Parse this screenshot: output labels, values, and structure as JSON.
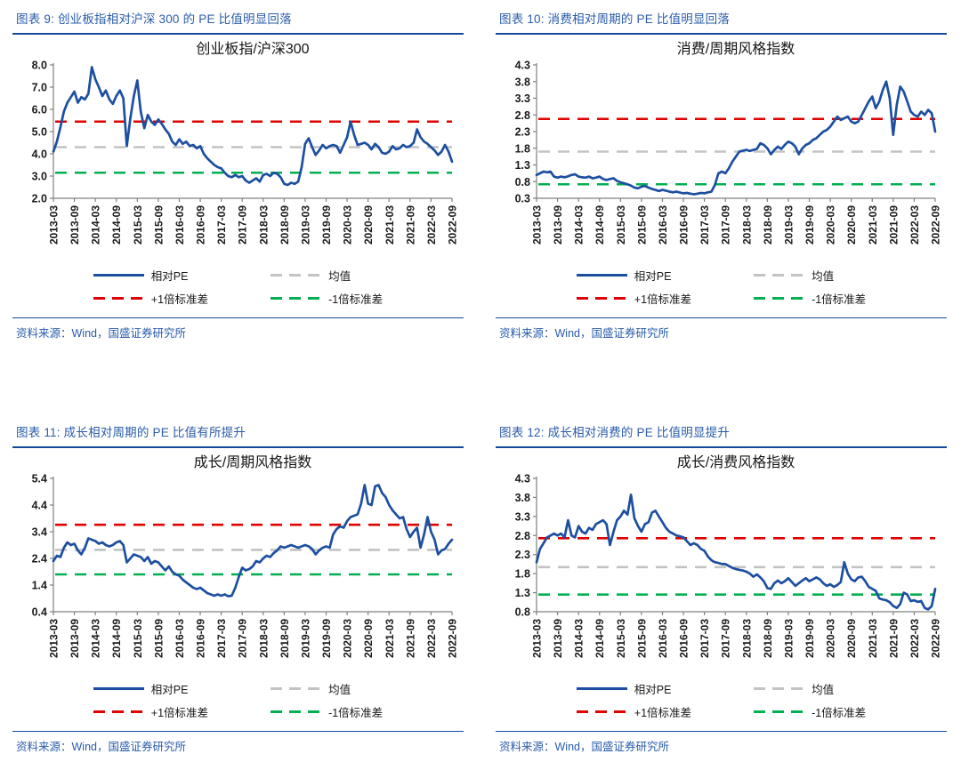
{
  "page": {
    "background": "#ffffff"
  },
  "colors": {
    "line": "#1d4fa1",
    "mean": "#c3c3c3",
    "plus1sd": "#e00000",
    "minus1sd": "#00b050",
    "header_text": "#2a5caa",
    "rule": "#17499b",
    "axis": "#808080"
  },
  "legend": {
    "series": "相对PE",
    "mean": "均值",
    "plus_sd": "+1倍标准差",
    "minus_sd": "-1倍标准差"
  },
  "source_text": "资料来源：Wind，国盛证券研究所",
  "panels": [
    {
      "header": "图表 9: 创业板指相对沪深 300 的 PE 比值明显回落"
    },
    {
      "header": "图表 10: 消费相对周期的 PE 比值明显回落"
    },
    {
      "header": "图表 11: 成长相对周期的 PE 比值有所提升"
    },
    {
      "header": "图表 12: 成长相对消费的 PE 比值明显提升"
    }
  ],
  "chart_data": [
    {
      "type": "line",
      "title": "创业板指/沪深300",
      "ylim": [
        2.0,
        8.0
      ],
      "ytick_labels": [
        "2.0",
        "3.0",
        "4.0",
        "5.0",
        "6.0",
        "7.0",
        "8.0"
      ],
      "yticks": [
        2.0,
        3.0,
        4.0,
        5.0,
        6.0,
        7.0,
        8.0
      ],
      "x_tick_labels": [
        "2013-03",
        "2013-09",
        "2014-03",
        "2014-09",
        "2015-03",
        "2015-09",
        "2016-03",
        "2016-09",
        "2017-03",
        "2017-09",
        "2018-03",
        "2018-09",
        "2019-03",
        "2019-09",
        "2020-03",
        "2020-09",
        "2021-03",
        "2021-09",
        "2022-03",
        "2022-09"
      ],
      "mean": 4.3,
      "plus1sd": 5.45,
      "minus1sd": 3.15,
      "series_monthly": [
        4.1,
        4.55,
        5.2,
        5.9,
        6.3,
        6.55,
        6.8,
        6.3,
        6.55,
        6.45,
        6.7,
        7.9,
        7.35,
        7.0,
        6.6,
        6.85,
        6.45,
        6.25,
        6.6,
        6.85,
        6.5,
        4.35,
        5.6,
        6.6,
        7.3,
        5.9,
        5.15,
        5.75,
        5.45,
        5.3,
        5.55,
        5.35,
        5.1,
        4.9,
        4.55,
        4.4,
        4.65,
        4.45,
        4.55,
        4.35,
        4.4,
        4.25,
        4.35,
        4.0,
        3.8,
        3.65,
        3.5,
        3.4,
        3.35,
        3.15,
        3.0,
        2.95,
        3.05,
        2.95,
        3.0,
        2.8,
        2.7,
        2.8,
        2.9,
        2.75,
        3.05,
        3.1,
        3.0,
        3.15,
        3.1,
        2.95,
        2.65,
        2.6,
        2.7,
        2.65,
        2.75,
        3.4,
        4.45,
        4.7,
        4.3,
        3.95,
        4.15,
        4.4,
        4.25,
        4.35,
        4.4,
        4.35,
        4.05,
        4.4,
        4.75,
        5.45,
        4.85,
        4.4,
        4.45,
        4.5,
        4.4,
        4.2,
        4.45,
        4.3,
        4.05,
        4.0,
        4.1,
        4.35,
        4.2,
        4.25,
        4.4,
        4.3,
        4.35,
        4.5,
        5.1,
        4.75,
        4.55,
        4.45,
        4.3,
        4.15,
        3.95,
        4.1,
        4.4,
        4.1,
        3.65
      ]
    },
    {
      "type": "line",
      "title": "消费/周期风格指数",
      "ylim": [
        0.3,
        4.3
      ],
      "ytick_labels": [
        "0.3",
        "0.8",
        "1.3",
        "1.8",
        "2.3",
        "2.8",
        "3.3",
        "3.8",
        "4.3"
      ],
      "yticks": [
        0.3,
        0.8,
        1.3,
        1.8,
        2.3,
        2.8,
        3.3,
        3.8,
        4.3
      ],
      "x_tick_labels": [
        "2013-03",
        "2013-09",
        "2014-03",
        "2014-09",
        "2015-03",
        "2015-09",
        "2016-03",
        "2016-09",
        "2017-03",
        "2017-09",
        "2018-03",
        "2018-09",
        "2019-03",
        "2019-09",
        "2020-03",
        "2020-09",
        "2021-03",
        "2021-09",
        "2022-03",
        "2022-09"
      ],
      "mean": 1.7,
      "plus1sd": 2.68,
      "minus1sd": 0.72,
      "series_monthly": [
        1.0,
        1.05,
        1.1,
        1.08,
        1.1,
        0.95,
        0.92,
        0.95,
        0.93,
        0.96,
        1.0,
        1.02,
        0.95,
        0.93,
        0.92,
        0.95,
        0.9,
        0.92,
        0.95,
        0.88,
        0.85,
        0.88,
        0.9,
        0.82,
        0.78,
        0.75,
        0.72,
        0.68,
        0.62,
        0.6,
        0.65,
        0.67,
        0.62,
        0.58,
        0.55,
        0.52,
        0.55,
        0.53,
        0.5,
        0.48,
        0.5,
        0.47,
        0.45,
        0.46,
        0.44,
        0.42,
        0.44,
        0.46,
        0.45,
        0.48,
        0.5,
        0.7,
        1.05,
        1.1,
        1.05,
        1.2,
        1.4,
        1.55,
        1.7,
        1.73,
        1.75,
        1.72,
        1.75,
        1.78,
        1.95,
        1.9,
        1.8,
        1.62,
        1.75,
        1.85,
        1.78,
        1.9,
        2.0,
        1.95,
        1.85,
        1.62,
        1.8,
        1.9,
        1.95,
        2.05,
        2.1,
        2.2,
        2.3,
        2.35,
        2.45,
        2.6,
        2.75,
        2.65,
        2.7,
        2.75,
        2.6,
        2.55,
        2.6,
        2.8,
        3.0,
        3.2,
        3.35,
        3.0,
        3.2,
        3.55,
        3.8,
        3.3,
        2.2,
        3.1,
        3.65,
        3.5,
        3.2,
        2.9,
        2.8,
        2.75,
        2.9,
        2.8,
        2.95,
        2.85,
        2.3
      ]
    },
    {
      "type": "line",
      "title": "成长/周期风格指数",
      "ylim": [
        0.4,
        5.4
      ],
      "ytick_labels": [
        "0.4",
        "1.4",
        "2.4",
        "3.4",
        "4.4",
        "5.4"
      ],
      "yticks": [
        0.4,
        1.4,
        2.4,
        3.4,
        4.4,
        5.4
      ],
      "x_tick_labels": [
        "2013-03",
        "2013-09",
        "2014-03",
        "2014-09",
        "2015-03",
        "2015-09",
        "2016-03",
        "2016-09",
        "2017-03",
        "2017-09",
        "2018-03",
        "2018-09",
        "2019-03",
        "2019-09",
        "2020-03",
        "2020-09",
        "2021-03",
        "2021-09",
        "2022-03",
        "2022-09"
      ],
      "mean": 2.72,
      "plus1sd": 3.66,
      "minus1sd": 1.8,
      "series_monthly": [
        2.3,
        2.5,
        2.45,
        2.8,
        3.0,
        2.9,
        2.95,
        2.7,
        2.55,
        2.8,
        3.15,
        3.1,
        3.05,
        2.95,
        3.0,
        2.9,
        2.85,
        2.9,
        3.0,
        3.05,
        2.9,
        2.25,
        2.4,
        2.55,
        2.5,
        2.45,
        2.3,
        2.45,
        2.2,
        2.3,
        2.25,
        2.1,
        1.95,
        2.1,
        1.9,
        1.8,
        1.75,
        1.6,
        1.5,
        1.4,
        1.3,
        1.25,
        1.3,
        1.2,
        1.1,
        1.05,
        1.0,
        1.05,
        1.0,
        1.05,
        0.98,
        1.0,
        1.3,
        1.7,
        2.05,
        1.95,
        2.0,
        2.1,
        2.3,
        2.25,
        2.4,
        2.5,
        2.45,
        2.6,
        2.7,
        2.85,
        2.8,
        2.85,
        2.9,
        2.85,
        2.8,
        2.85,
        2.9,
        2.85,
        2.75,
        2.55,
        2.7,
        2.8,
        2.85,
        2.8,
        3.3,
        3.5,
        3.6,
        3.55,
        3.8,
        3.95,
        4.0,
        4.05,
        4.45,
        5.15,
        4.45,
        4.4,
        5.1,
        5.15,
        4.85,
        4.7,
        4.4,
        4.2,
        4.05,
        3.9,
        3.95,
        3.5,
        3.2,
        3.4,
        3.55,
        2.8,
        3.3,
        3.95,
        3.4,
        3.1,
        2.55,
        2.7,
        2.75,
        2.95,
        3.1
      ]
    },
    {
      "type": "line",
      "title": "成长/消费风格指数",
      "ylim": [
        0.8,
        4.3
      ],
      "ytick_labels": [
        "0.8",
        "1.3",
        "1.8",
        "2.3",
        "2.8",
        "3.3",
        "3.8",
        "4.3"
      ],
      "yticks": [
        0.8,
        1.3,
        1.8,
        2.3,
        2.8,
        3.3,
        3.8,
        4.3
      ],
      "x_tick_labels": [
        "2013-03",
        "2013-09",
        "2014-03",
        "2014-09",
        "2015-03",
        "2015-09",
        "2016-03",
        "2016-09",
        "2017-03",
        "2017-09",
        "2018-03",
        "2018-09",
        "2019-03",
        "2019-09",
        "2020-03",
        "2020-09",
        "2021-03",
        "2021-09",
        "2022-03",
        "2022-09"
      ],
      "mean": 1.97,
      "plus1sd": 2.73,
      "minus1sd": 1.25,
      "series_monthly": [
        2.1,
        2.45,
        2.6,
        2.75,
        2.8,
        2.85,
        2.8,
        2.85,
        2.75,
        3.2,
        2.8,
        2.75,
        3.05,
        2.9,
        2.85,
        3.0,
        2.95,
        3.1,
        3.15,
        3.2,
        3.1,
        2.55,
        2.9,
        3.2,
        3.3,
        3.45,
        3.35,
        3.87,
        3.25,
        3.05,
        2.9,
        3.1,
        3.15,
        3.4,
        3.45,
        3.3,
        3.15,
        3.0,
        2.9,
        2.85,
        2.8,
        2.78,
        2.75,
        2.65,
        2.55,
        2.6,
        2.55,
        2.45,
        2.4,
        2.25,
        2.15,
        2.1,
        2.08,
        2.05,
        2.05,
        2.0,
        1.95,
        1.92,
        1.9,
        1.88,
        1.85,
        1.8,
        1.72,
        1.78,
        1.7,
        1.6,
        1.42,
        1.4,
        1.55,
        1.62,
        1.55,
        1.6,
        1.68,
        1.58,
        1.48,
        1.55,
        1.62,
        1.68,
        1.6,
        1.65,
        1.7,
        1.65,
        1.55,
        1.48,
        1.52,
        1.45,
        1.5,
        1.58,
        2.1,
        1.8,
        1.65,
        1.6,
        1.7,
        1.72,
        1.6,
        1.45,
        1.4,
        1.35,
        1.15,
        1.12,
        1.1,
        1.05,
        0.95,
        0.9,
        1.0,
        1.3,
        1.25,
        1.08,
        1.1,
        1.06,
        1.08,
        0.9,
        0.86,
        0.95,
        1.4
      ]
    }
  ]
}
